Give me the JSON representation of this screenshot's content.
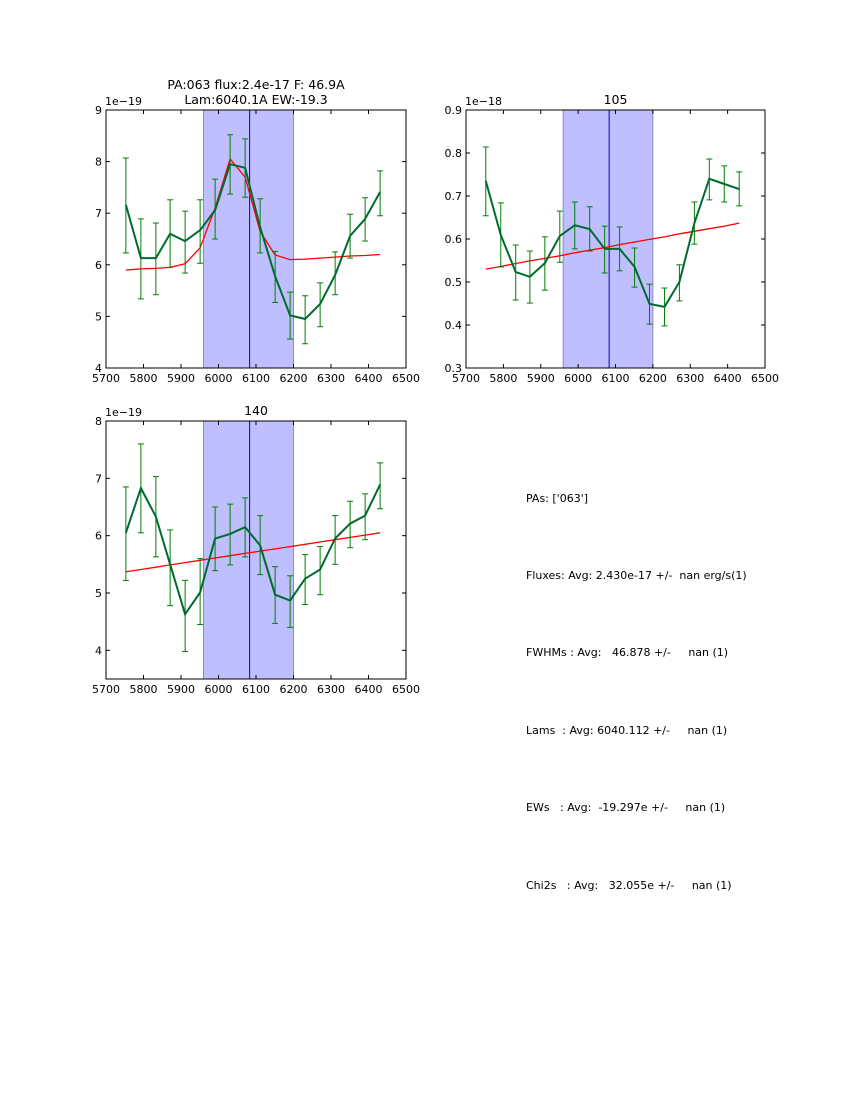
{
  "colors": {
    "data_line": "#006b2e",
    "errorbar": "#007f00",
    "fit_line": "#ff0000",
    "shade_fill": "#bfbfff",
    "shade_edge": "#8a8ac8",
    "center_line": "#0000cc"
  },
  "chart_data": [
    {
      "type": "line",
      "title_lines": [
        "PA:063 flux:2.4e-17 F: 46.9A",
        "Lam:6040.1A EW:-19.3"
      ],
      "offset_label": "1e−19",
      "xlim": [
        5700,
        6500
      ],
      "ylim": [
        4,
        9
      ],
      "xticks": [
        5700,
        5800,
        5900,
        6000,
        6100,
        6200,
        6300,
        6400,
        6500
      ],
      "xtick_labels": [
        "5700",
        "5800",
        "5900",
        "6000",
        "6100",
        "6200",
        "6300",
        "6400",
        "6500"
      ],
      "yticks": [
        4,
        5,
        6,
        7,
        8,
        9
      ],
      "ytick_labels": [
        "4",
        "5",
        "6",
        "7",
        "8",
        "9"
      ],
      "shade_range": [
        5960,
        6200
      ],
      "center_line": 6083,
      "x": [
        5753,
        5793,
        5833,
        5871,
        5911,
        5951,
        5991,
        6031,
        6071,
        6111,
        6151,
        6191,
        6231,
        6271,
        6311,
        6351,
        6391,
        6431
      ],
      "series": [
        {
          "name": "data",
          "values": [
            7.16,
            6.13,
            6.13,
            6.6,
            6.46,
            6.67,
            7.06,
            7.95,
            7.88,
            6.73,
            5.78,
            5.02,
            4.95,
            5.24,
            5.8,
            6.56,
            6.89,
            7.41
          ],
          "err_low": [
            6.23,
            5.34,
            5.42,
            5.95,
            5.84,
            6.03,
            6.5,
            7.37,
            7.31,
            6.23,
            5.27,
            4.56,
            4.47,
            4.8,
            5.42,
            6.13,
            6.46,
            6.95
          ],
          "err_high": [
            8.07,
            6.89,
            6.81,
            7.26,
            7.04,
            7.26,
            7.66,
            8.52,
            8.44,
            7.28,
            6.26,
            5.47,
            5.4,
            5.65,
            6.25,
            6.98,
            7.3,
            7.82
          ]
        },
        {
          "name": "fit",
          "values": [
            5.9,
            5.92,
            5.93,
            5.95,
            6.02,
            6.33,
            7.1,
            8.05,
            7.7,
            6.65,
            6.19,
            6.1,
            6.11,
            6.13,
            6.15,
            6.17,
            6.18,
            6.2
          ]
        }
      ]
    },
    {
      "type": "line",
      "title_lines": [
        "105"
      ],
      "offset_label": "1e−18",
      "xlim": [
        5700,
        6500
      ],
      "ylim": [
        0.3,
        0.9
      ],
      "xticks": [
        5700,
        5800,
        5900,
        6000,
        6100,
        6200,
        6300,
        6400,
        6500
      ],
      "xtick_labels": [
        "5700",
        "5800",
        "5900",
        "6000",
        "6100",
        "6200",
        "6300",
        "6400",
        "6500"
      ],
      "yticks": [
        0.3,
        0.4,
        0.5,
        0.6,
        0.7,
        0.8,
        0.9
      ],
      "ytick_labels": [
        "0.3",
        "0.4",
        "0.5",
        "0.6",
        "0.7",
        "0.8",
        "0.9"
      ],
      "shade_range": [
        5960,
        6200
      ],
      "center_line": 6083,
      "x": [
        5753,
        5793,
        5833,
        5871,
        5911,
        5951,
        5991,
        6031,
        6071,
        6111,
        6151,
        6191,
        6231,
        6271,
        6311,
        6351,
        6391,
        6431
      ],
      "series": [
        {
          "name": "data",
          "values": [
            0.735,
            0.609,
            0.523,
            0.512,
            0.544,
            0.607,
            0.632,
            0.623,
            0.577,
            0.577,
            0.535,
            0.449,
            0.442,
            0.5,
            0.637,
            0.74,
            0.728,
            0.716
          ],
          "err_low": [
            0.654,
            0.535,
            0.458,
            0.451,
            0.481,
            0.546,
            0.577,
            0.572,
            0.521,
            0.526,
            0.488,
            0.402,
            0.398,
            0.456,
            0.588,
            0.691,
            0.686,
            0.677
          ],
          "err_high": [
            0.814,
            0.684,
            0.586,
            0.572,
            0.605,
            0.665,
            0.686,
            0.675,
            0.63,
            0.628,
            0.579,
            0.495,
            0.486,
            0.54,
            0.686,
            0.786,
            0.77,
            0.756
          ]
        },
        {
          "name": "fit",
          "values": [
            0.53,
            0.536,
            0.543,
            0.549,
            0.555,
            0.561,
            0.568,
            0.574,
            0.58,
            0.587,
            0.593,
            0.599,
            0.605,
            0.612,
            0.618,
            0.624,
            0.63,
            0.637
          ]
        }
      ]
    },
    {
      "type": "line",
      "title_lines": [
        "140"
      ],
      "offset_label": "1e−19",
      "xlim": [
        5700,
        6500
      ],
      "ylim": [
        3.5,
        8
      ],
      "xticks": [
        5700,
        5800,
        5900,
        6000,
        6100,
        6200,
        6300,
        6400,
        6500
      ],
      "xtick_labels": [
        "5700",
        "5800",
        "5900",
        "6000",
        "6100",
        "6200",
        "6300",
        "6400",
        "6500"
      ],
      "yticks": [
        4,
        5,
        6,
        7,
        8
      ],
      "ytick_labels": [
        "4",
        "5",
        "6",
        "7",
        "8"
      ],
      "shade_range": [
        5960,
        6200
      ],
      "center_line": 6083,
      "x": [
        5753,
        5793,
        5833,
        5871,
        5911,
        5951,
        5991,
        6031,
        6071,
        6111,
        6151,
        6191,
        6231,
        6271,
        6311,
        6351,
        6391,
        6431
      ],
      "series": [
        {
          "name": "data",
          "values": [
            6.05,
            6.83,
            6.33,
            5.5,
            4.63,
            5.01,
            5.95,
            6.03,
            6.15,
            5.83,
            4.97,
            4.87,
            5.25,
            5.41,
            5.95,
            6.21,
            6.35,
            6.89
          ],
          "err_low": [
            5.22,
            6.05,
            5.63,
            4.78,
            3.98,
            4.45,
            5.39,
            5.49,
            5.63,
            5.32,
            4.47,
            4.4,
            4.8,
            4.97,
            5.5,
            5.79,
            5.93,
            6.47
          ],
          "err_high": [
            6.85,
            7.6,
            7.03,
            6.1,
            5.22,
            5.6,
            6.5,
            6.55,
            6.66,
            6.35,
            5.46,
            5.3,
            5.67,
            5.81,
            6.35,
            6.6,
            6.73,
            7.27
          ]
        },
        {
          "name": "fit",
          "values": [
            5.37,
            5.41,
            5.45,
            5.49,
            5.53,
            5.57,
            5.61,
            5.65,
            5.69,
            5.73,
            5.77,
            5.81,
            5.85,
            5.89,
            5.93,
            5.97,
            6.01,
            6.05
          ]
        }
      ]
    }
  ],
  "stats": {
    "lines": [
      "PAs: ['063']",
      "Fluxes: Avg: 2.430e-17 +/-  nan erg/s(1)",
      "FWHMs : Avg:   46.878 +/-     nan (1)",
      "Lams  : Avg: 6040.112 +/-     nan (1)",
      "EWs   : Avg:  -19.297e +/-     nan (1)",
      "Chi2s   : Avg:   32.055e +/-     nan (1)"
    ]
  }
}
